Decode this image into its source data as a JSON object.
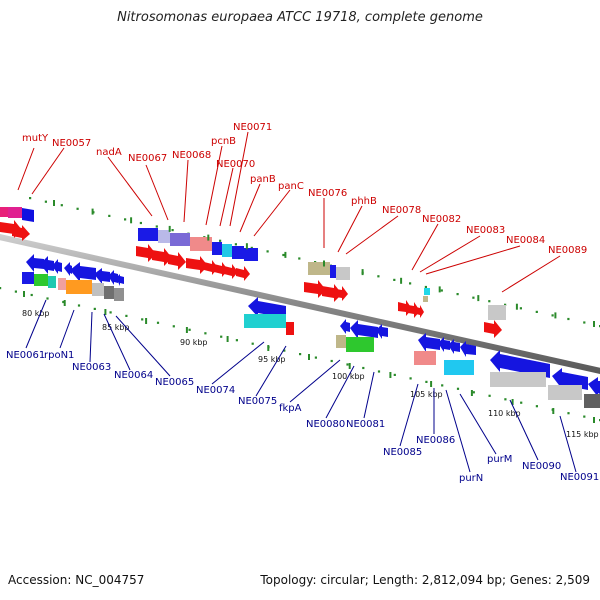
{
  "title": "Nitrosomonas europaea ATCC 19718, complete genome",
  "footer": {
    "accession": "Accession: NC_004757",
    "topology": "Topology: circular; Length: 2,812,094 bp; Genes: 2,509"
  },
  "colors": {
    "forward_label": "#cc0000",
    "reverse_label": "#00008b",
    "backbone": "#888888"
  },
  "forward_labels": [
    "mutY",
    "NE0057",
    "nadA",
    "NE0067",
    "NE0068",
    "pcnB",
    "NE0071",
    "NE0070",
    "panB",
    "panC",
    "NE0076",
    "phhB",
    "NE0078",
    "NE0082",
    "NE0083",
    "NE0084",
    "NE0089"
  ],
  "reverse_labels": [
    "NE0061",
    "rpoN1",
    "NE0063",
    "NE0064",
    "NE0065",
    "NE0074",
    "NE0075",
    "fkpA",
    "NE0080",
    "NE0081",
    "NE0085",
    "NE0086",
    "purN",
    "purM",
    "NE0090",
    "NE0091"
  ],
  "ticks": [
    "80 kbp",
    "85 kbp",
    "90 kbp",
    "95 kbp",
    "100 kbp",
    "105 kbp",
    "110 kbp",
    "115 kbp"
  ]
}
